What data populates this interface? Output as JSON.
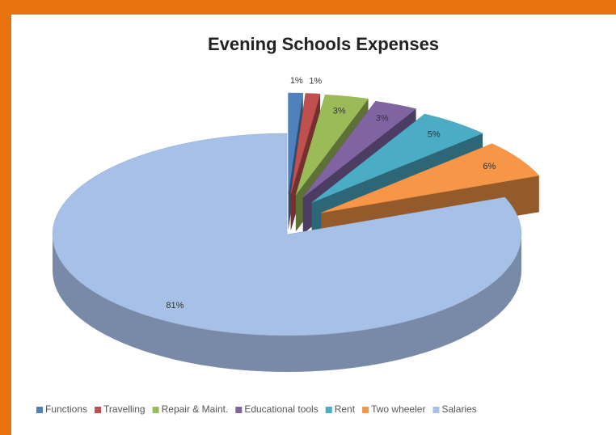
{
  "chart_data": {
    "type": "pie3d",
    "title": "Evening Schools Expenses",
    "categories": [
      "Functions",
      "Travelling",
      "Repair & Maint.",
      "Educational tools",
      "Rent",
      "Two wheeler",
      "Salaries"
    ],
    "values": [
      1,
      1,
      3,
      3,
      5,
      6,
      81
    ],
    "value_labels": [
      "1%",
      "1%",
      "3%",
      "3%",
      "5%",
      "6%",
      "81%"
    ],
    "colors": [
      "#4f81bd",
      "#c0504d",
      "#9bbb59",
      "#8064a2",
      "#4bacc6",
      "#f79646",
      "#a7c0e8"
    ],
    "legend": "bottom"
  }
}
